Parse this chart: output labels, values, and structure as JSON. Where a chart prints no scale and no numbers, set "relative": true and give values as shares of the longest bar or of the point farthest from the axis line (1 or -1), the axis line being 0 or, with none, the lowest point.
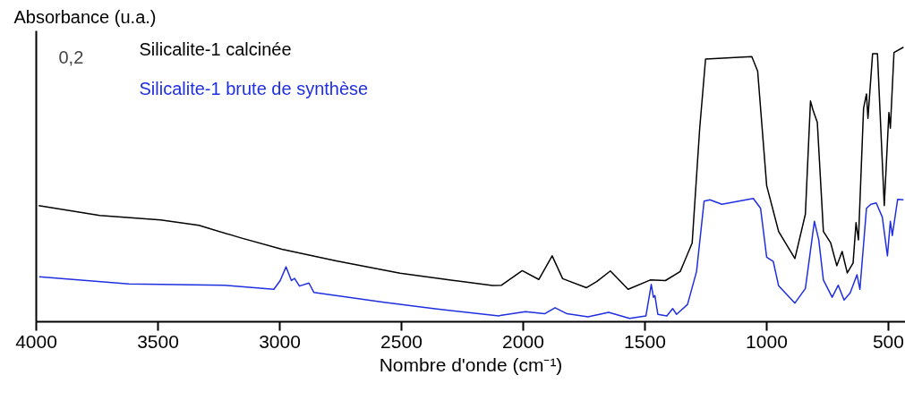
{
  "chart_data": {
    "type": "line",
    "relative": true,
    "xlabel": "Nombre d'onde (cm⁻¹)",
    "ylabel": "Absorbance (u.a.)",
    "annotations": [
      "0,2"
    ],
    "legend": "top left",
    "grid": false,
    "xlim": [
      4000,
      430
    ],
    "xticks": [
      4000,
      3500,
      3000,
      2500,
      2000,
      1500,
      1000,
      500
    ],
    "series": [
      {
        "name": "Silicalite-1 calcinée",
        "color": "#000000",
        "x": [
          3990,
          3739,
          3489,
          3332,
          3162,
          2991,
          2768,
          2506,
          2283,
          2126,
          2089,
          2004,
          1936,
          1881,
          1838,
          1740,
          1698,
          1642,
          1569,
          1478,
          1416,
          1355,
          1306,
          1275,
          1251,
          1061,
          1037,
          1000,
          951,
          884,
          841,
          820,
          810,
          792,
          767,
          737,
          712,
          690,
          669,
          645,
          633,
          623,
          602,
          590,
          584,
          565,
          545,
          517,
          498,
          492,
          477,
          438
        ],
        "values": [
          0.423,
          0.387,
          0.371,
          0.351,
          0.306,
          0.264,
          0.222,
          0.177,
          0.15,
          0.132,
          0.133,
          0.186,
          0.154,
          0.24,
          0.157,
          0.124,
          0.146,
          0.185,
          0.118,
          0.152,
          0.15,
          0.183,
          0.287,
          0.705,
          0.957,
          0.966,
          0.913,
          0.496,
          0.329,
          0.23,
          0.392,
          0.804,
          0.772,
          0.726,
          0.329,
          0.287,
          0.204,
          0.256,
          0.178,
          0.214,
          0.361,
          0.298,
          0.778,
          0.83,
          0.741,
          0.976,
          0.976,
          0.423,
          0.762,
          0.705,
          0.981,
          1
        ]
      },
      {
        "name": "Silicalite-1 brute de synthèse",
        "color": "#1f2fe0",
        "x": [
          3988,
          3620,
          3227,
          3024,
          2998,
          2974,
          2952,
          2939,
          2919,
          2880,
          2860,
          2572,
          2362,
          2100,
          2089,
          1991,
          1912,
          1869,
          1820,
          1734,
          1649,
          1563,
          1496,
          1474,
          1465,
          1459,
          1447,
          1410,
          1386,
          1370,
          1325,
          1288,
          1257,
          1233,
          1184,
          1055,
          1025,
          1000,
          973,
          951,
          884,
          841,
          804,
          786,
          767,
          731,
          706,
          682,
          657,
          629,
          617,
          590,
          572,
          550,
          525,
          504,
          492,
          484,
          462,
          438
        ],
        "values": [
          0.164,
          0.138,
          0.133,
          0.118,
          0.15,
          0.2,
          0.15,
          0.158,
          0.13,
          0.141,
          0.107,
          0.071,
          0.047,
          0.021,
          0.024,
          0.037,
          0.029,
          0.051,
          0.029,
          0.018,
          0.034,
          0.012,
          0.021,
          0.136,
          0.089,
          0.095,
          0.027,
          0.021,
          0.048,
          0.027,
          0.063,
          0.183,
          0.439,
          0.444,
          0.428,
          0.449,
          0.413,
          0.235,
          0.22,
          0.131,
          0.068,
          0.121,
          0.366,
          0.298,
          0.152,
          0.089,
          0.133,
          0.079,
          0.105,
          0.171,
          0.118,
          0.413,
          0.428,
          0.433,
          0.381,
          0.24,
          0.366,
          0.314,
          0.446,
          0.444
        ]
      }
    ]
  }
}
